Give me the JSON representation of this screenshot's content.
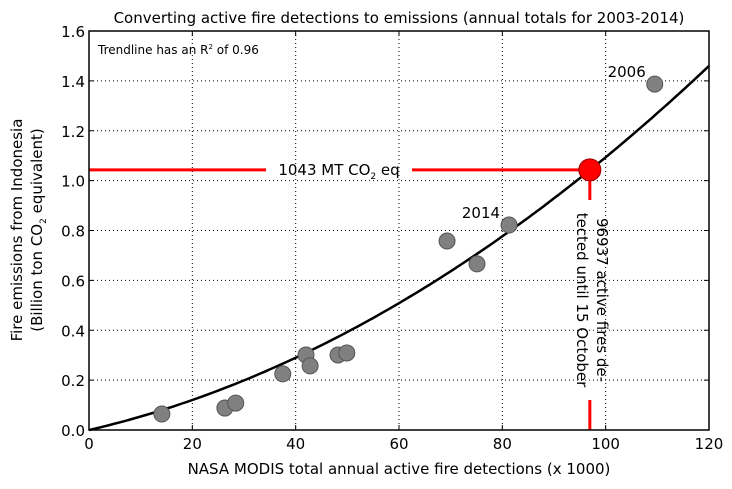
{
  "chart_data": {
    "type": "scatter",
    "title": "Converting active fire detections to emissions (annual totals for 2003-2014)",
    "xlabel": "NASA MODIS total annual active fire detections (x 1000)",
    "ylabel_line1": "Fire emissions from Indonesia",
    "ylabel_line2_pre": "(Billion ton CO",
    "ylabel_line2_sub": "2",
    "ylabel_line2_post": " equivalent)",
    "xlim": [
      0,
      120
    ],
    "ylim": [
      0,
      1.6
    ],
    "xticks": [
      0,
      20,
      40,
      60,
      80,
      100,
      120
    ],
    "xtick_labels": [
      "0",
      "20",
      "40",
      "60",
      "80",
      "100",
      "120"
    ],
    "yticks": [
      0,
      0.2,
      0.4,
      0.6,
      0.8,
      1.0,
      1.2,
      1.4,
      1.6
    ],
    "ytick_labels": [
      "0.0",
      "0.2",
      "0.4",
      "0.6",
      "0.8",
      "1.0",
      "1.2",
      "1.4",
      "1.6"
    ],
    "grid": true,
    "points": [
      {
        "x": 14.1,
        "y": 0.064
      },
      {
        "x": 26.3,
        "y": 0.088
      },
      {
        "x": 28.4,
        "y": 0.108
      },
      {
        "x": 37.5,
        "y": 0.225
      },
      {
        "x": 42.0,
        "y": 0.301
      },
      {
        "x": 42.8,
        "y": 0.257
      },
      {
        "x": 48.2,
        "y": 0.301
      },
      {
        "x": 49.9,
        "y": 0.309
      },
      {
        "x": 69.3,
        "y": 0.758
      },
      {
        "x": 75.1,
        "y": 0.666
      },
      {
        "x": 81.3,
        "y": 0.822
      },
      {
        "x": 109.5,
        "y": 1.387
      }
    ],
    "point_labels": [
      {
        "text": "2014",
        "x": 81.3,
        "y": 0.822
      },
      {
        "text": "2006",
        "x": 109.5,
        "y": 1.387
      }
    ],
    "trendline": {
      "type": "quadratic",
      "c1": 0.004787,
      "c2": 6.15e-05,
      "x_range": [
        0,
        120
      ]
    },
    "highlight": {
      "x": 96.937,
      "y": 1.043,
      "color": "#ff0000"
    },
    "r2_note_pre": "Trendline has an R",
    "r2_note_sup": "2",
    "r2_note_post": "  of 0.96",
    "hline_label_pre": "1043 MT CO",
    "hline_label_sub": "2",
    "hline_label_post": " eq",
    "vline_label_1": "96937 active fires de-",
    "vline_label_2": "tected until 15 October"
  }
}
